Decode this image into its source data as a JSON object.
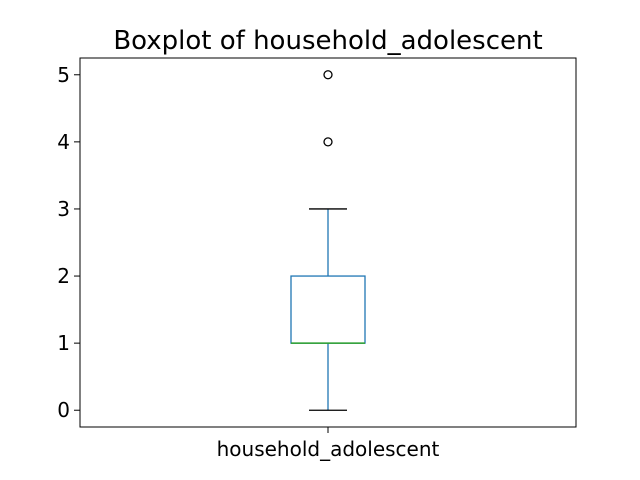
{
  "chart_data": {
    "type": "box",
    "title": "Boxplot of household_adolescent",
    "xlabel": "",
    "ylabel": "",
    "categories": [
      "household_adolescent"
    ],
    "yticks": [
      "0",
      "1",
      "2",
      "3",
      "4",
      "5"
    ],
    "ylim": [
      -0.25,
      5.25
    ],
    "grid": false,
    "box": {
      "whisker_low": 0,
      "q1": 1,
      "median": 1,
      "q3": 2,
      "whisker_high": 3,
      "outliers": [
        4,
        5
      ]
    },
    "colors": {
      "box": "#1f77b4",
      "median": "#2ca02c",
      "whisker": "#1f77b4",
      "cap": "#000000",
      "outlier": "#000000",
      "axes": "#000000"
    }
  }
}
